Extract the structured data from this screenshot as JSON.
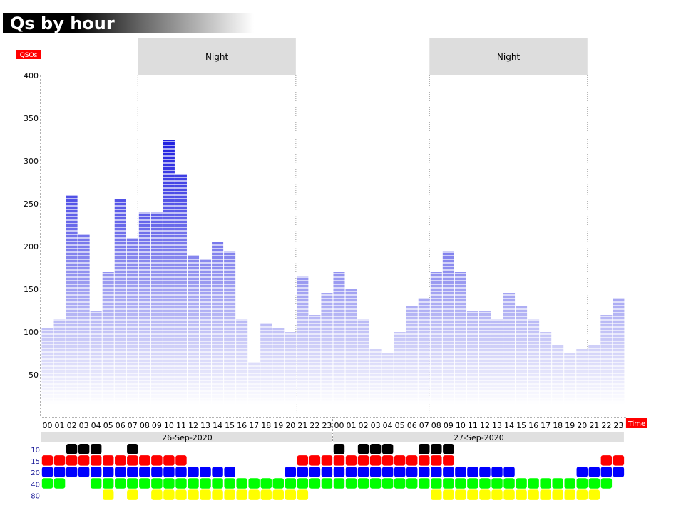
{
  "header": {
    "title": "Qs by hour"
  },
  "chart_data": {
    "type": "bar",
    "title": "Qs by hour",
    "ylabel": "QSOs",
    "xlabel": "Time",
    "ylim": [
      0,
      400
    ],
    "yticks": [
      50,
      100,
      150,
      200,
      250,
      300,
      350,
      400
    ],
    "categories": [
      "00",
      "01",
      "02",
      "03",
      "04",
      "05",
      "06",
      "07",
      "08",
      "09",
      "10",
      "11",
      "12",
      "13",
      "14",
      "15",
      "16",
      "17",
      "18",
      "19",
      "20",
      "21",
      "22",
      "23",
      "00",
      "01",
      "02",
      "03",
      "04",
      "05",
      "06",
      "07",
      "08",
      "09",
      "10",
      "11",
      "12",
      "13",
      "14",
      "15",
      "16",
      "17",
      "18",
      "19",
      "20",
      "21",
      "22",
      "23"
    ],
    "dates": [
      {
        "label": "26-Sep-2020",
        "start": 0,
        "end": 23
      },
      {
        "label": "27-Sep-2020",
        "start": 24,
        "end": 47
      }
    ],
    "series": [
      {
        "values": [
          105,
          115,
          260,
          215,
          125,
          170,
          255,
          210,
          240,
          240,
          325,
          285,
          190,
          185,
          205,
          195,
          115,
          65,
          110,
          105,
          100,
          165,
          120,
          145,
          170,
          150,
          115,
          80,
          75,
          100,
          130,
          140,
          170,
          195,
          170,
          125,
          125,
          115,
          145,
          130,
          115,
          100,
          85,
          75,
          80,
          85,
          120,
          140
        ]
      }
    ],
    "night": [
      {
        "label": "Night",
        "start": 8,
        "end": 21
      },
      {
        "label": "Night",
        "start": 32,
        "end": 45
      }
    ],
    "bands": [
      {
        "label": "10",
        "color": "#000000",
        "hours": [
          2,
          3,
          4,
          7,
          24,
          26,
          27,
          28,
          31,
          32,
          33
        ]
      },
      {
        "label": "15",
        "color": "#ff0000",
        "hours": [
          0,
          1,
          2,
          3,
          4,
          5,
          6,
          7,
          8,
          9,
          10,
          11,
          21,
          22,
          23,
          24,
          25,
          26,
          27,
          28,
          29,
          30,
          31,
          32,
          33,
          46,
          47
        ]
      },
      {
        "label": "20",
        "color": "#0000ff",
        "hours": [
          0,
          1,
          2,
          3,
          4,
          5,
          6,
          7,
          8,
          9,
          10,
          11,
          12,
          13,
          14,
          15,
          20,
          21,
          22,
          23,
          24,
          25,
          26,
          27,
          28,
          29,
          30,
          31,
          32,
          33,
          34,
          35,
          36,
          37,
          38,
          44,
          45,
          46,
          47
        ]
      },
      {
        "label": "40",
        "color": "#00ff00",
        "hours": [
          0,
          1,
          4,
          5,
          6,
          7,
          8,
          9,
          10,
          11,
          12,
          13,
          14,
          15,
          16,
          17,
          18,
          19,
          20,
          21,
          22,
          23,
          24,
          25,
          26,
          27,
          28,
          29,
          30,
          31,
          32,
          33,
          34,
          35,
          36,
          37,
          38,
          39,
          40,
          41,
          42,
          43,
          44,
          45,
          46
        ]
      },
      {
        "label": "80",
        "color": "#ffff00",
        "hours": [
          5,
          7,
          9,
          10,
          11,
          12,
          13,
          14,
          15,
          16,
          17,
          18,
          19,
          20,
          21,
          32,
          33,
          34,
          35,
          36,
          37,
          38,
          39,
          40,
          41,
          42,
          43,
          44,
          45
        ]
      }
    ],
    "colors": {
      "bar_dark": "#2020e0",
      "bar_light": "#ffffff",
      "axis_badge": "#ff0000",
      "night_fill": "#dddddd"
    }
  }
}
